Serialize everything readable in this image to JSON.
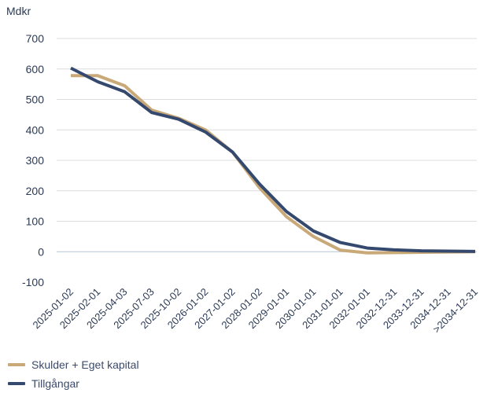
{
  "chart_data": {
    "type": "line",
    "unit_label": "Mdkr",
    "categories": [
      "2025-01-02",
      "2025-02-01",
      "2025-04-03",
      "2025-07-03",
      "2025-10-02",
      "2026-01-02",
      "2027-01-02",
      "2028-01-02",
      "2029-01-01",
      "2030-01-01",
      "2031-01-01",
      "2032-01-01",
      "2032-12-31",
      "2033-12-31",
      "2034-12-31",
      ">2034-12-31"
    ],
    "yticks": [
      -100,
      0,
      100,
      200,
      300,
      400,
      500,
      600,
      700
    ],
    "ylim": [
      -100,
      700
    ],
    "grid": true,
    "legend_position": "bottom-left",
    "series": [
      {
        "name": "Skulder + Eget kapital",
        "color": "#c9a978",
        "values": [
          578,
          578,
          545,
          465,
          438,
          400,
          327,
          210,
          115,
          50,
          5,
          -4,
          -3,
          -2,
          -1,
          0
        ]
      },
      {
        "name": "Tillgångar",
        "color": "#35496e",
        "values": [
          603,
          558,
          525,
          457,
          435,
          393,
          327,
          222,
          132,
          68,
          30,
          12,
          6,
          3,
          2,
          1
        ]
      }
    ]
  }
}
